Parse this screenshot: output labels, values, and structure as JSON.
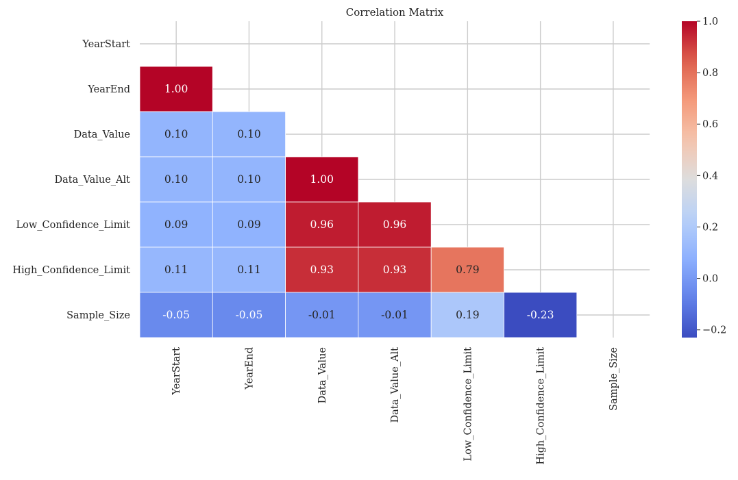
{
  "chart_data": {
    "type": "heatmap",
    "title": "Correlation Matrix",
    "variables": [
      "YearStart",
      "YearEnd",
      "Data_Value",
      "Data_Value_Alt",
      "Low_Confidence_Limit",
      "High_Confidence_Limit",
      "Sample_Size"
    ],
    "mask": "upper-triangle-including-diagonal",
    "values": [
      [
        null,
        null,
        null,
        null,
        null,
        null,
        null
      ],
      [
        1.0,
        null,
        null,
        null,
        null,
        null,
        null
      ],
      [
        0.1,
        0.1,
        null,
        null,
        null,
        null,
        null
      ],
      [
        0.1,
        0.1,
        1.0,
        null,
        null,
        null,
        null
      ],
      [
        0.09,
        0.09,
        0.96,
        0.96,
        null,
        null,
        null
      ],
      [
        0.11,
        0.11,
        0.93,
        0.93,
        0.79,
        null,
        null
      ],
      [
        -0.05,
        -0.05,
        -0.01,
        -0.01,
        0.19,
        -0.23,
        null
      ]
    ],
    "colorbar": {
      "colormap": "coolwarm",
      "vmin": -0.23,
      "vmax": 1.0,
      "ticks": [
        -0.2,
        0.0,
        0.2,
        0.4,
        0.6,
        0.8,
        1.0
      ],
      "tick_labels": [
        "−0.2",
        "0.0",
        "0.2",
        "0.4",
        "0.6",
        "0.8",
        "1.0"
      ]
    },
    "grid": true
  }
}
